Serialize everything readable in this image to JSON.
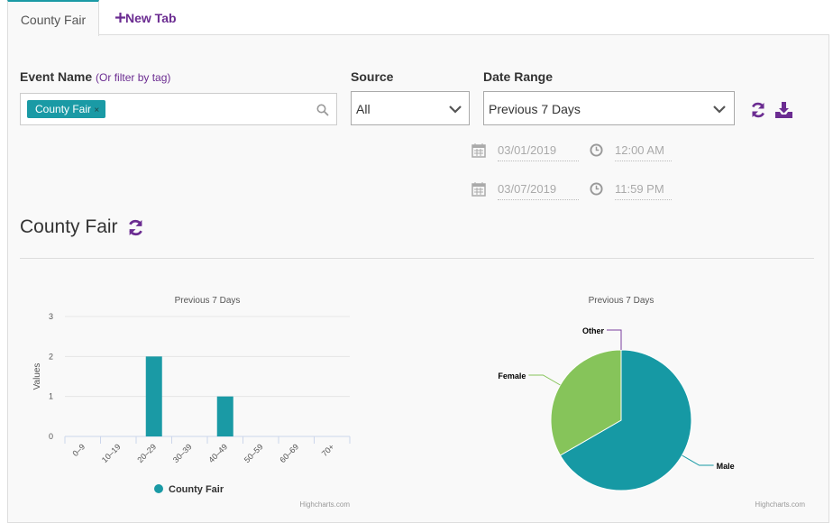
{
  "tabs": [
    {
      "label": "County Fair"
    },
    {
      "label": "New Tab"
    }
  ],
  "filters": {
    "event_name": {
      "label": "Event Name",
      "hint": "(Or filter by tag)",
      "tag": "County Fair",
      "tag_remove": "×"
    },
    "source": {
      "label": "Source",
      "value": "All"
    },
    "date_range": {
      "label": "Date Range",
      "value": "Previous 7 Days",
      "start_date": "03/01/2019",
      "start_time": "12:00 AM",
      "end_date": "03/07/2019",
      "end_time": "11:59 PM"
    }
  },
  "section": {
    "title": "County Fair"
  },
  "chart_data": [
    {
      "type": "bar",
      "title": "Previous 7 Days",
      "y_label": "Values",
      "categories": [
        "0–9",
        "10–19",
        "20–29",
        "30–39",
        "40–49",
        "50–59",
        "60–69",
        "70+"
      ],
      "series": [
        {
          "name": "County Fair",
          "color": "#1a9aa5",
          "values": [
            0,
            0,
            2,
            0,
            1,
            0,
            0,
            0
          ]
        }
      ],
      "ylim": [
        0,
        3
      ],
      "yticks": [
        0,
        1,
        2,
        3
      ],
      "grid": true,
      "credits": "Highcharts.com"
    },
    {
      "type": "pie",
      "title": "Previous 7 Days",
      "categories": [
        "Male",
        "Female",
        "Other"
      ],
      "values": [
        2,
        1,
        0
      ],
      "colors": [
        "#1699a4",
        "#86c45a",
        "#7b3f9e"
      ],
      "credits": "Highcharts.com"
    }
  ]
}
